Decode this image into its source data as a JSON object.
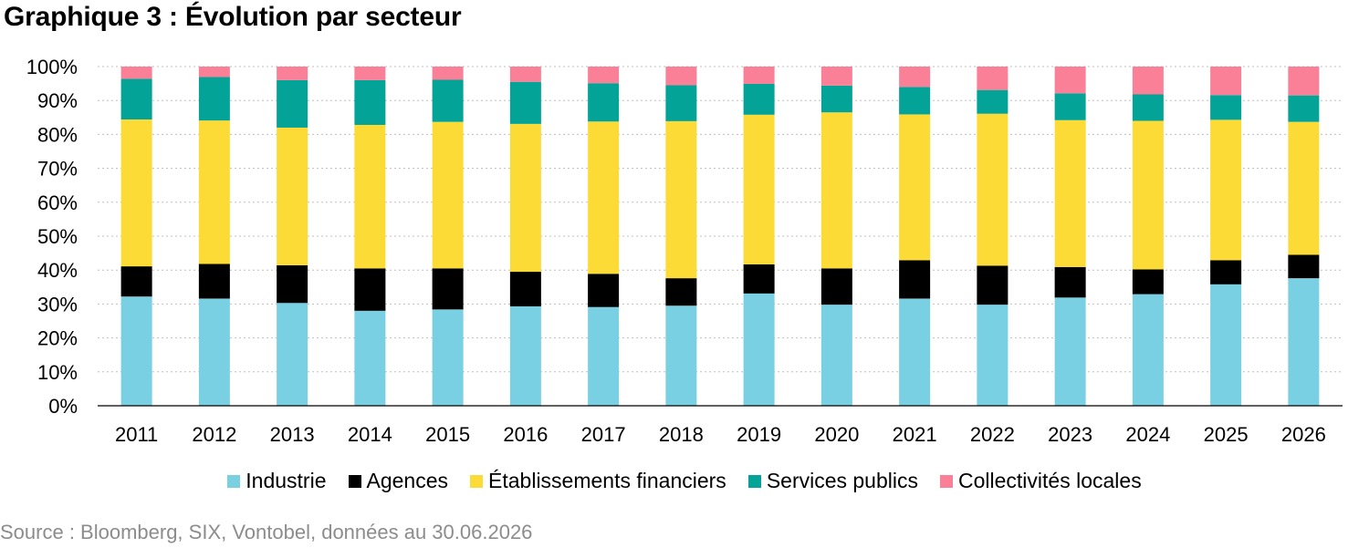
{
  "title": "Graphique 3 : Évolution par secteur",
  "source": "Source : Bloomberg, SIX, Vontobel, données au 30.06.2026",
  "chart_data": {
    "type": "bar",
    "stacked": true,
    "title": "Graphique 3 : Évolution par secteur",
    "xlabel": "",
    "ylabel": "",
    "ylim": [
      0,
      100
    ],
    "y_ticks": [
      "0%",
      "10%",
      "20%",
      "30%",
      "40%",
      "50%",
      "60%",
      "70%",
      "80%",
      "90%",
      "100%"
    ],
    "grid": "horizontal dotted",
    "legend_position": "bottom",
    "categories": [
      "2011",
      "2012",
      "2013",
      "2014",
      "2015",
      "2016",
      "2017",
      "2018",
      "2019",
      "2020",
      "2021",
      "2022",
      "2023",
      "2024",
      "2025",
      "2026"
    ],
    "series": [
      {
        "name": "Industrie",
        "color": "#7ad0e3",
        "values": [
          32.2,
          31.6,
          30.3,
          28.0,
          28.4,
          29.3,
          29.1,
          29.5,
          33.1,
          29.8,
          31.6,
          29.8,
          31.9,
          32.9,
          35.8,
          37.6
        ]
      },
      {
        "name": "Agences",
        "color": "#000000",
        "values": [
          8.9,
          10.2,
          11.1,
          12.5,
          12.1,
          10.2,
          9.8,
          8.1,
          8.6,
          10.7,
          11.3,
          11.5,
          9.0,
          7.3,
          7.1,
          6.9
        ]
      },
      {
        "name": "Établissements financiers",
        "color": "#fddb37",
        "values": [
          43.3,
          42.3,
          40.6,
          42.3,
          43.2,
          43.6,
          44.9,
          46.3,
          44.1,
          46.0,
          43.0,
          44.8,
          43.3,
          43.8,
          41.4,
          39.2
        ]
      },
      {
        "name": "Services publics",
        "color": "#04a397",
        "values": [
          12.0,
          12.8,
          14.0,
          13.2,
          12.4,
          12.4,
          11.3,
          10.6,
          9.1,
          7.9,
          8.1,
          7.0,
          7.9,
          7.8,
          7.3,
          7.8
        ]
      },
      {
        "name": "Collectivités locales",
        "color": "#f98097",
        "values": [
          3.6,
          3.1,
          4.0,
          4.0,
          3.9,
          4.5,
          4.9,
          5.5,
          5.1,
          5.6,
          6.0,
          6.9,
          7.9,
          8.2,
          8.4,
          8.5
        ]
      }
    ]
  }
}
